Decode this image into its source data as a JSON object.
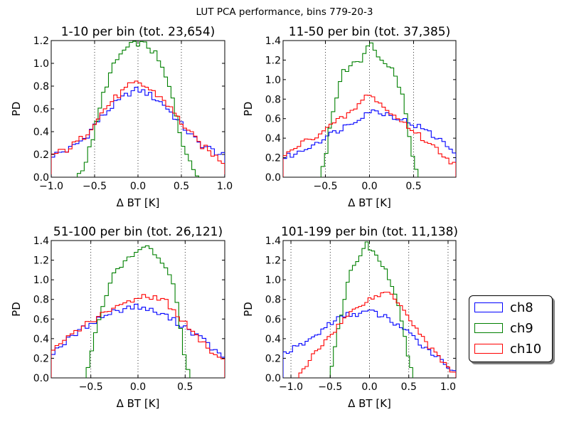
{
  "suptitle": "LUT PCA performance, bins 779-20-3",
  "legend": [
    {
      "label": "ch8",
      "color": "#0000ff"
    },
    {
      "label": "ch9",
      "color": "#008000"
    },
    {
      "label": "ch10",
      "color": "#ff0000"
    }
  ],
  "chart_data": [
    {
      "type": "line",
      "title": "1-10 per bin (tot. 23,654)",
      "xlabel": "Δ BT [K]",
      "ylabel": "PD",
      "xlim": [
        -1.0,
        1.0
      ],
      "ylim": [
        0.0,
        1.2
      ],
      "xticks": [
        "−1.0",
        "−0.5",
        "0.0",
        "0.5",
        "1.0"
      ],
      "xtick_values": [
        -1.0,
        -0.5,
        0.0,
        0.5,
        1.0
      ],
      "yticks": [
        "0.0",
        "0.2",
        "0.4",
        "0.6",
        "0.8",
        "1.0",
        "1.2"
      ],
      "ytick_values": [
        0.0,
        0.2,
        0.4,
        0.6,
        0.8,
        1.0,
        1.2
      ],
      "vlines": [
        -0.5,
        0.0,
        0.5
      ],
      "series": [
        {
          "name": "ch8",
          "x": [
            -1.0,
            -0.8,
            -0.6,
            -0.5,
            -0.3,
            -0.1,
            0.0,
            0.1,
            0.3,
            0.5,
            0.7,
            0.9,
            1.0
          ],
          "y": [
            0.19,
            0.24,
            0.35,
            0.46,
            0.62,
            0.74,
            0.77,
            0.74,
            0.64,
            0.46,
            0.3,
            0.22,
            0.18
          ]
        },
        {
          "name": "ch9",
          "x": [
            -0.7,
            -0.6,
            -0.5,
            -0.4,
            -0.3,
            -0.2,
            -0.1,
            0.0,
            0.1,
            0.2,
            0.3,
            0.4,
            0.5,
            0.6,
            0.7
          ],
          "y": [
            0.0,
            0.14,
            0.4,
            0.73,
            0.95,
            1.08,
            1.15,
            1.18,
            1.16,
            1.08,
            0.92,
            0.69,
            0.34,
            0.12,
            0.0
          ]
        },
        {
          "name": "ch10",
          "x": [
            -1.0,
            -0.8,
            -0.6,
            -0.5,
            -0.3,
            -0.1,
            0.0,
            0.1,
            0.3,
            0.5,
            0.7,
            0.9,
            1.0
          ],
          "y": [
            0.19,
            0.25,
            0.37,
            0.49,
            0.67,
            0.8,
            0.83,
            0.79,
            0.68,
            0.48,
            0.3,
            0.18,
            0.13
          ]
        }
      ]
    },
    {
      "type": "line",
      "title": "11-50 per bin (tot. 37,385)",
      "xlabel": "Δ BT [K]",
      "ylabel": "PD",
      "xlim": [
        -0.98,
        0.98
      ],
      "ylim": [
        0.0,
        1.4
      ],
      "xticks": [
        "−0.5",
        "0.0",
        "0.5"
      ],
      "xtick_values": [
        -0.5,
        0.0,
        0.5
      ],
      "yticks": [
        "0.0",
        "0.2",
        "0.4",
        "0.6",
        "0.8",
        "1.0",
        "1.2",
        "1.4"
      ],
      "ytick_values": [
        0.0,
        0.2,
        0.4,
        0.6,
        0.8,
        1.0,
        1.2,
        1.4
      ],
      "vlines": [
        -0.5,
        0.0,
        0.5
      ],
      "series": [
        {
          "name": "ch8",
          "x": [
            -0.98,
            -0.8,
            -0.6,
            -0.4,
            -0.2,
            0.0,
            0.2,
            0.4,
            0.6,
            0.8,
            0.98
          ],
          "y": [
            0.2,
            0.25,
            0.36,
            0.46,
            0.56,
            0.68,
            0.65,
            0.58,
            0.5,
            0.38,
            0.25
          ]
        },
        {
          "name": "ch9",
          "x": [
            -0.55,
            -0.5,
            -0.4,
            -0.3,
            -0.2,
            -0.1,
            0.0,
            0.1,
            0.2,
            0.3,
            0.4,
            0.5,
            0.55
          ],
          "y": [
            0.0,
            0.22,
            0.75,
            1.08,
            1.15,
            1.2,
            1.38,
            1.23,
            1.18,
            1.05,
            0.75,
            0.15,
            0.0
          ]
        },
        {
          "name": "ch10",
          "x": [
            -0.98,
            -0.8,
            -0.6,
            -0.4,
            -0.2,
            0.0,
            0.2,
            0.4,
            0.6,
            0.8,
            0.98
          ],
          "y": [
            0.2,
            0.33,
            0.43,
            0.55,
            0.67,
            0.86,
            0.68,
            0.55,
            0.4,
            0.26,
            0.12
          ]
        }
      ]
    },
    {
      "type": "line",
      "title": "51-100 per bin (tot. 26,121)",
      "xlabel": "Δ BT [K]",
      "ylabel": "PD",
      "xlim": [
        -0.92,
        0.92
      ],
      "ylim": [
        0.0,
        1.4
      ],
      "xticks": [
        "−0.5",
        "0.0",
        "0.5"
      ],
      "xtick_values": [
        -0.5,
        0.0,
        0.5
      ],
      "yticks": [
        "0.0",
        "0.2",
        "0.4",
        "0.6",
        "0.8",
        "1.0",
        "1.2",
        "1.4"
      ],
      "ytick_values": [
        0.0,
        0.2,
        0.4,
        0.6,
        0.8,
        1.0,
        1.2,
        1.4
      ],
      "vlines": [
        -0.5,
        0.0,
        0.5
      ],
      "series": [
        {
          "name": "ch8",
          "x": [
            -0.92,
            -0.7,
            -0.5,
            -0.3,
            -0.1,
            0.0,
            0.1,
            0.3,
            0.5,
            0.7,
            0.92
          ],
          "y": [
            0.25,
            0.42,
            0.56,
            0.66,
            0.72,
            0.73,
            0.7,
            0.63,
            0.52,
            0.38,
            0.18
          ]
        },
        {
          "name": "ch9",
          "x": [
            -0.55,
            -0.5,
            -0.4,
            -0.3,
            -0.2,
            -0.1,
            0.0,
            0.1,
            0.2,
            0.3,
            0.4,
            0.5,
            0.55
          ],
          "y": [
            0.0,
            0.25,
            0.65,
            0.98,
            1.12,
            1.22,
            1.28,
            1.33,
            1.25,
            1.12,
            0.88,
            0.2,
            0.0
          ]
        },
        {
          "name": "ch10",
          "x": [
            -0.92,
            -0.7,
            -0.5,
            -0.3,
            -0.1,
            0.0,
            0.1,
            0.3,
            0.5,
            0.7,
            0.92
          ],
          "y": [
            0.25,
            0.45,
            0.58,
            0.68,
            0.78,
            0.82,
            0.84,
            0.78,
            0.55,
            0.34,
            0.16
          ]
        }
      ]
    },
    {
      "type": "line",
      "title": "101-199 per bin (tot. 11,138)",
      "xlabel": "Δ BT [K]",
      "ylabel": "PD",
      "xlim": [
        -1.1,
        1.1
      ],
      "ylim": [
        0.0,
        1.4
      ],
      "xticks": [
        "−1.0",
        "−0.5",
        "0.0",
        "0.5",
        "1.0"
      ],
      "xtick_values": [
        -1.0,
        -0.5,
        0.0,
        0.5,
        1.0
      ],
      "yticks": [
        "0.0",
        "0.2",
        "0.4",
        "0.6",
        "0.8",
        "1.0",
        "1.2",
        "1.4"
      ],
      "ytick_values": [
        0.0,
        0.2,
        0.4,
        0.6,
        0.8,
        1.0,
        1.2,
        1.4
      ],
      "vlines": [
        -1.0,
        -0.5,
        0.0,
        0.5,
        1.0
      ],
      "series": [
        {
          "name": "ch8",
          "x": [
            -1.1,
            -0.9,
            -0.7,
            -0.5,
            -0.3,
            -0.1,
            0.0,
            0.2,
            0.4,
            0.6,
            0.8,
            1.0,
            1.1
          ],
          "y": [
            0.25,
            0.32,
            0.42,
            0.56,
            0.64,
            0.66,
            0.68,
            0.62,
            0.52,
            0.38,
            0.26,
            0.12,
            0.06
          ]
        },
        {
          "name": "ch9",
          "x": [
            -0.5,
            -0.45,
            -0.35,
            -0.25,
            -0.15,
            -0.05,
            0.05,
            0.15,
            0.25,
            0.35,
            0.45,
            0.55
          ],
          "y": [
            0.0,
            0.3,
            0.7,
            1.05,
            1.2,
            1.38,
            1.28,
            1.18,
            1.02,
            0.78,
            0.4,
            0.0
          ]
        },
        {
          "name": "ch10",
          "x": [
            -0.9,
            -0.7,
            -0.5,
            -0.3,
            -0.1,
            0.1,
            0.25,
            0.4,
            0.6,
            0.8,
            1.0,
            1.1
          ],
          "y": [
            0.0,
            0.25,
            0.44,
            0.62,
            0.76,
            0.84,
            0.88,
            0.75,
            0.5,
            0.28,
            0.12,
            0.02
          ]
        }
      ]
    }
  ]
}
